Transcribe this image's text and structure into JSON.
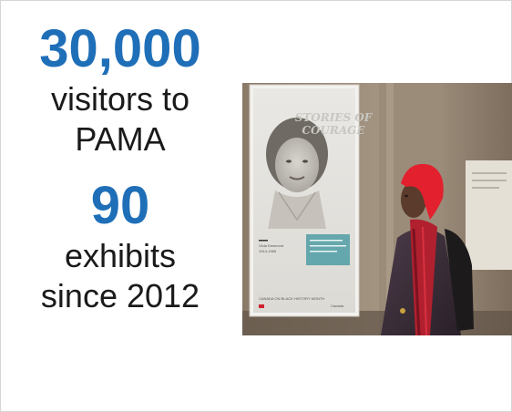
{
  "stats": [
    {
      "value": "30,000",
      "label_lines": [
        "visitors to",
        "PAMA"
      ]
    },
    {
      "value": "90",
      "label_lines": [
        "exhibits",
        "since 2012"
      ]
    }
  ],
  "poster": {
    "title_line1": "STORIES OF",
    "title_line2": "COURAGE",
    "name": "Viola Desmond",
    "years": "1914-1965",
    "caption": "CANADA ON BLACK HISTORY MONTH",
    "wordmark": "Canada"
  },
  "colors": {
    "accent": "#1f6fb8",
    "text": "#1a1a1a",
    "hat": "#e2202e"
  }
}
